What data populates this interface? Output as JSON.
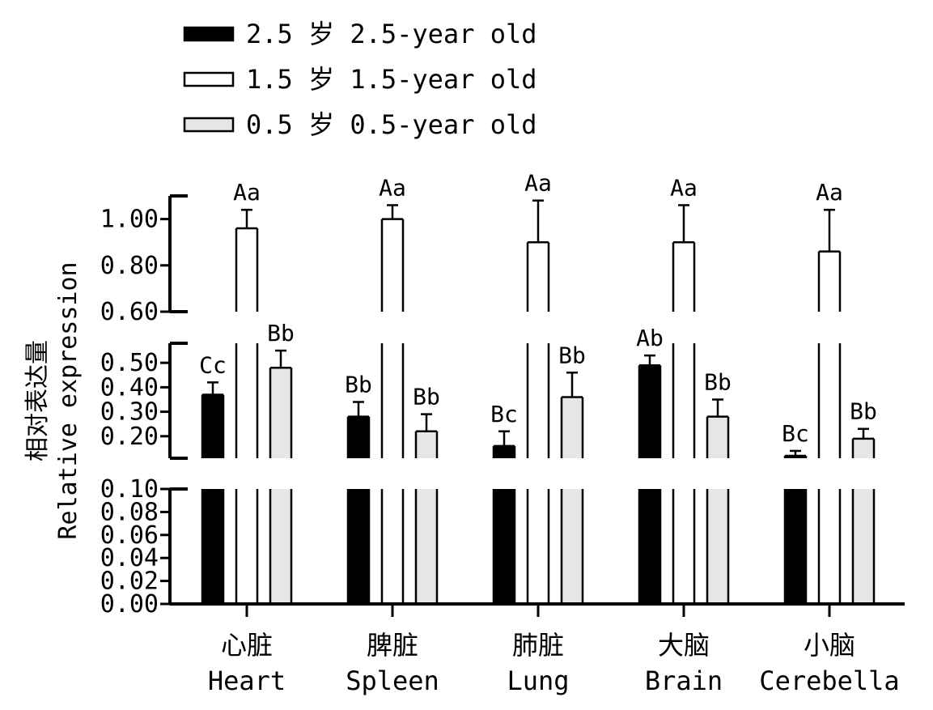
{
  "chart_data": {
    "type": "bar",
    "ylabel": [
      "相对表达量",
      "Relative expression"
    ],
    "categories": [
      {
        "cn": "心脏",
        "en": "Heart"
      },
      {
        "cn": "脾脏",
        "en": "Spleen"
      },
      {
        "cn": "肺脏",
        "en": "Lung"
      },
      {
        "cn": "大脑",
        "en": "Brain"
      },
      {
        "cn": "小脑",
        "en": "Cerebella"
      }
    ],
    "series": [
      {
        "name": "2.5 岁 2.5-year old",
        "color": "#000000",
        "values": [
          0.37,
          0.28,
          0.16,
          0.49,
          0.12
        ],
        "errors": [
          0.05,
          0.06,
          0.06,
          0.04,
          0.02
        ],
        "labels": [
          "Cc",
          "Bb",
          "Bc",
          "Ab",
          "Bc"
        ]
      },
      {
        "name": "1.5 岁 1.5-year old",
        "color": "#ffffff",
        "values": [
          0.96,
          1.0,
          0.9,
          0.9,
          0.86
        ],
        "errors": [
          0.08,
          0.06,
          0.18,
          0.16,
          0.18
        ],
        "labels": [
          "Aa",
          "Aa",
          "Aa",
          "Aa",
          "Aa"
        ]
      },
      {
        "name": "0.5 岁 0.5-year old",
        "color": "#e6e6e6",
        "values": [
          0.48,
          0.22,
          0.36,
          0.28,
          0.19
        ],
        "errors": [
          0.07,
          0.07,
          0.1,
          0.07,
          0.04
        ],
        "labels": [
          "Bb",
          "Bb",
          "Bb",
          "Bb",
          "Bb"
        ]
      }
    ],
    "axis_segments": [
      {
        "range": [
          0.0,
          0.1
        ],
        "ticks": [
          "0.00",
          "0.02",
          "0.04",
          "0.06",
          "0.08",
          "0.10"
        ]
      },
      {
        "range": [
          0.11,
          0.58
        ],
        "ticks": [
          "0.20",
          "0.30",
          "0.40",
          "0.50"
        ]
      },
      {
        "range": [
          0.6,
          1.1
        ],
        "ticks": [
          "0.60",
          "0.80",
          "1.00"
        ]
      }
    ],
    "legend_position": "top-left",
    "grid": false
  }
}
